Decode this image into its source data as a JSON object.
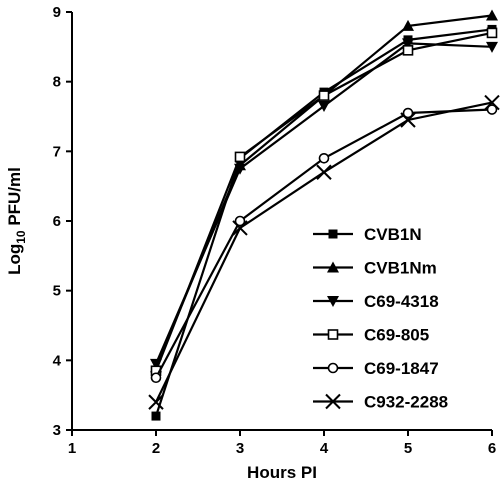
{
  "chart_data": {
    "type": "line",
    "title": "",
    "xlabel": "Hours PI",
    "ylabel_main": "Log",
    "ylabel_sub": "10",
    "ylabel_rest": " PFU/ml",
    "xlim": [
      1,
      6
    ],
    "ylim": [
      3,
      9
    ],
    "xticks": [
      1,
      2,
      3,
      4,
      5,
      6
    ],
    "yticks": [
      3,
      4,
      5,
      6,
      7,
      8,
      9
    ],
    "grid": false,
    "legend_position": "bottom-right",
    "series": [
      {
        "name": "CVB1N",
        "marker": "square",
        "x": [
          2,
          3,
          4,
          5,
          6
        ],
        "y": [
          3.2,
          6.9,
          7.85,
          8.6,
          8.75
        ]
      },
      {
        "name": "CVB1Nm",
        "marker": "triangle-up",
        "x": [
          2,
          3,
          4,
          5,
          6
        ],
        "y": [
          3.9,
          6.8,
          7.8,
          8.8,
          8.95
        ]
      },
      {
        "name": "C69-4318",
        "marker": "triangle-down",
        "x": [
          2,
          3,
          4,
          5,
          6
        ],
        "y": [
          3.95,
          6.75,
          7.65,
          8.55,
          8.5
        ]
      },
      {
        "name": "C69-805",
        "marker": "open-square",
        "x": [
          2,
          3,
          4,
          5,
          6
        ],
        "y": [
          3.85,
          6.92,
          7.8,
          8.45,
          8.7
        ]
      },
      {
        "name": "C69-1847",
        "marker": "open-circle",
        "x": [
          2,
          3,
          4,
          5,
          6
        ],
        "y": [
          3.75,
          6.0,
          6.9,
          7.55,
          7.6
        ]
      },
      {
        "name": "C932-2288",
        "marker": "x",
        "x": [
          2,
          3,
          4,
          5,
          6
        ],
        "y": [
          3.4,
          5.9,
          6.7,
          7.45,
          7.7
        ]
      }
    ]
  }
}
